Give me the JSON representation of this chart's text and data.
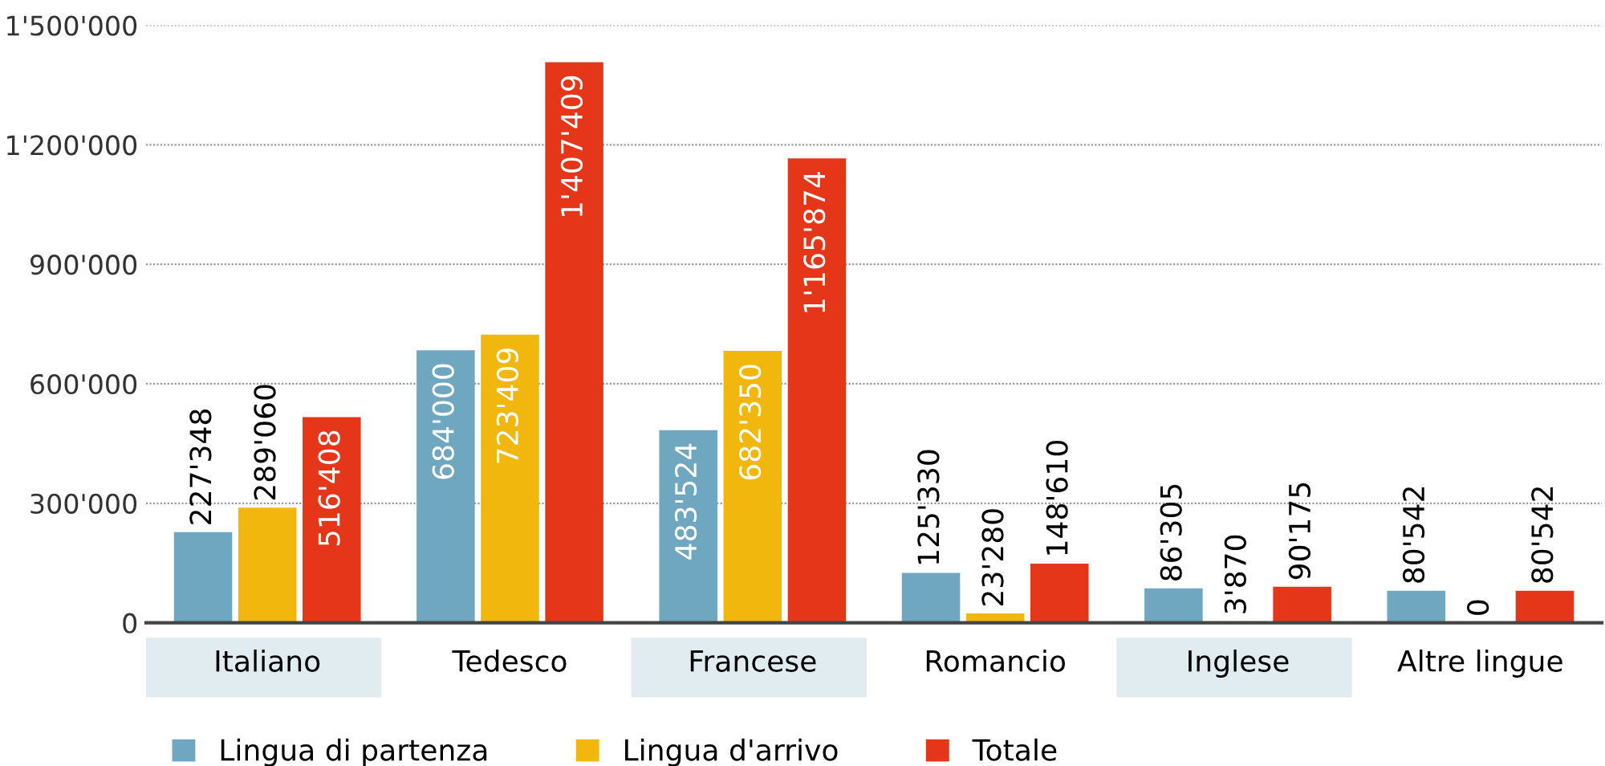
{
  "chart_data": {
    "type": "bar",
    "categories": [
      "Italiano",
      "Tedesco",
      "Francese",
      "Romancio",
      "Inglese",
      "Altre lingue"
    ],
    "series": [
      {
        "name": "Lingua di partenza",
        "color": "#6fa7c1",
        "values": [
          227348,
          684000,
          483524,
          125330,
          86305,
          80542
        ],
        "value_labels": [
          "227'348",
          "684'000",
          "483'524",
          "125'330",
          "86'305",
          "80'542"
        ]
      },
      {
        "name": "Lingua d'arrivo",
        "color": "#f2b70c",
        "values": [
          289060,
          723409,
          682350,
          23280,
          3870,
          0
        ],
        "value_labels": [
          "289'060",
          "723'409",
          "682'350",
          "23'280",
          "3'870",
          "0"
        ]
      },
      {
        "name": "Totale",
        "color": "#e53619",
        "values": [
          516408,
          1407409,
          1165874,
          148610,
          90175,
          80542
        ],
        "value_labels": [
          "516'408",
          "1'407'409",
          "1'165'874",
          "148'610",
          "90'175",
          "80'542"
        ]
      }
    ],
    "ylim": [
      0,
      1500000
    ],
    "yticks": [
      0,
      {
        "value": 300000,
        "label": "300'000"
      },
      {
        "value": 600000,
        "label": "600'000"
      },
      {
        "value": 900000,
        "label": "900'000"
      },
      {
        "value": 1200000,
        "label": "1'200'000"
      },
      {
        "value": 1500000,
        "label": "1'500'000"
      }
    ],
    "grid": "y",
    "legend": "bottom left"
  }
}
